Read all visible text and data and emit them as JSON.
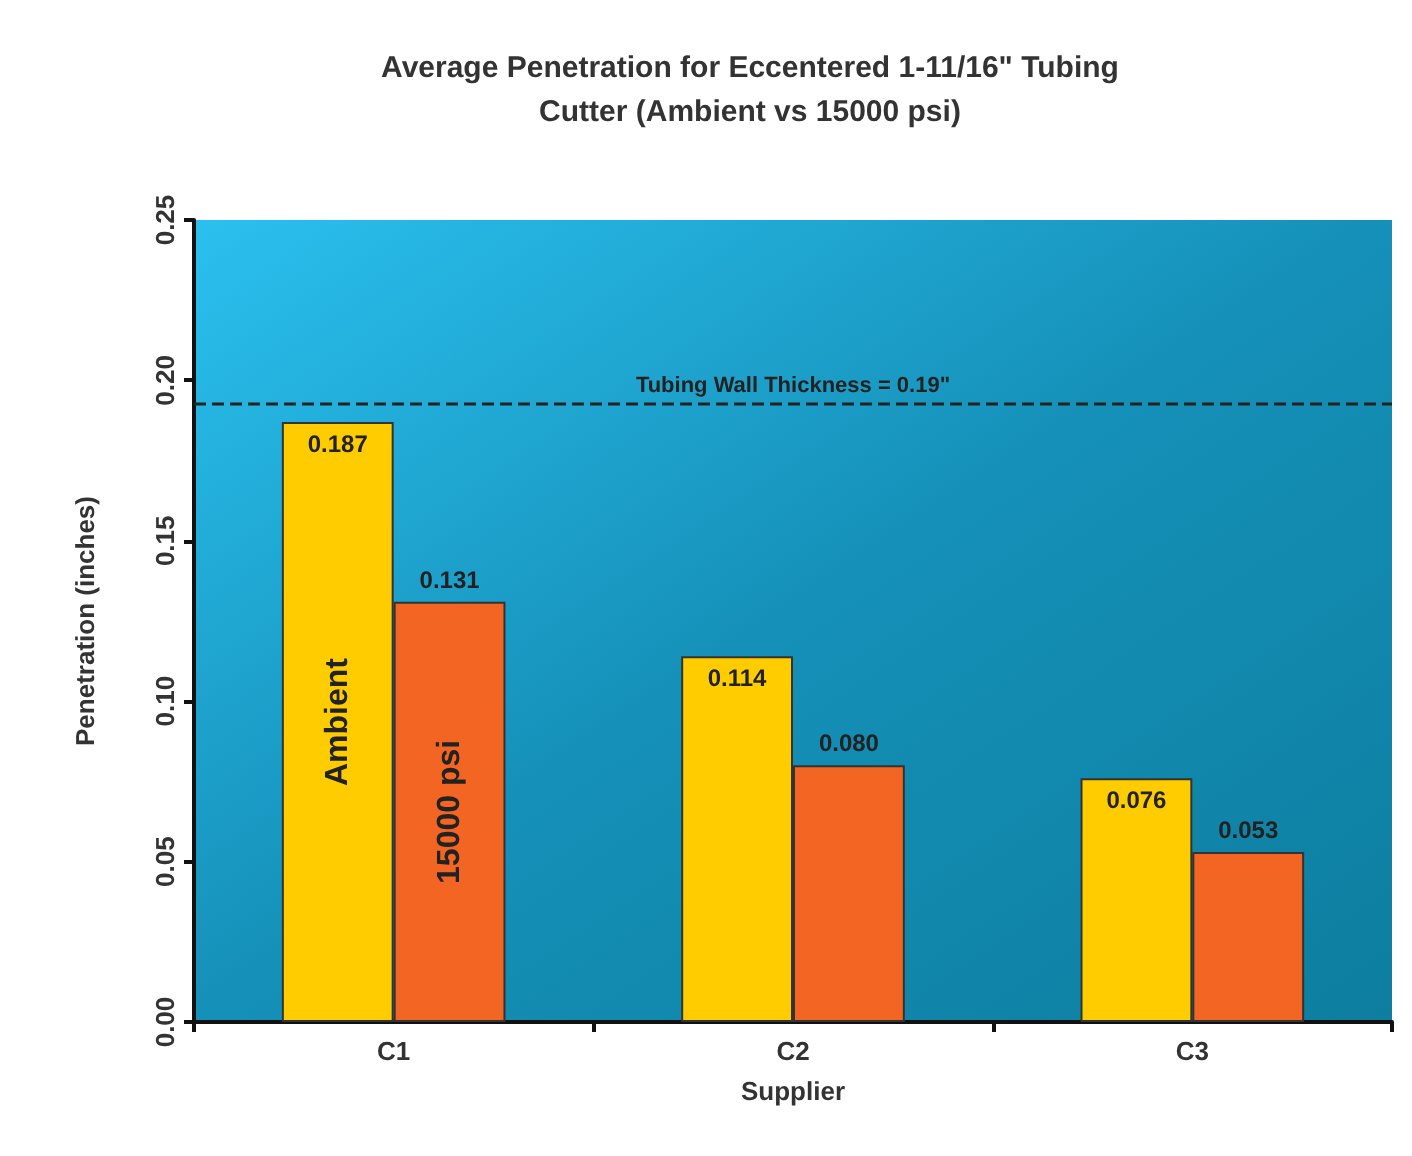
{
  "chart_data": {
    "type": "bar",
    "title": "Average Penetration for Eccentered 1-11/16\" Tubing\nCutter (Ambient vs 15000 psi)",
    "xlabel": "Supplier",
    "ylabel": "Penetration (inches)",
    "categories": [
      "C1",
      "C2",
      "C3"
    ],
    "series": [
      {
        "name": "Ambient",
        "color": "#ffcc00",
        "values": [
          0.187,
          0.114,
          0.076
        ],
        "value_labels": [
          "0.187",
          "0.114",
          "0.076"
        ]
      },
      {
        "name": "15000 psi",
        "color": "#f26522",
        "values": [
          0.131,
          0.08,
          0.053
        ],
        "value_labels": [
          "0.131",
          "0.080",
          "0.053"
        ]
      }
    ],
    "ylim": [
      0,
      0.25
    ],
    "yticks": [
      "0.00",
      "0.05",
      "0.10",
      "0.15",
      "0.20",
      "0.25"
    ],
    "ref_lines": [
      {
        "axis": "y",
        "value": 0.193,
        "label": "Tubing Wall Thickness = 0.19\"",
        "line_style": "dashed",
        "color": "#222222"
      }
    ],
    "grid": false
  }
}
